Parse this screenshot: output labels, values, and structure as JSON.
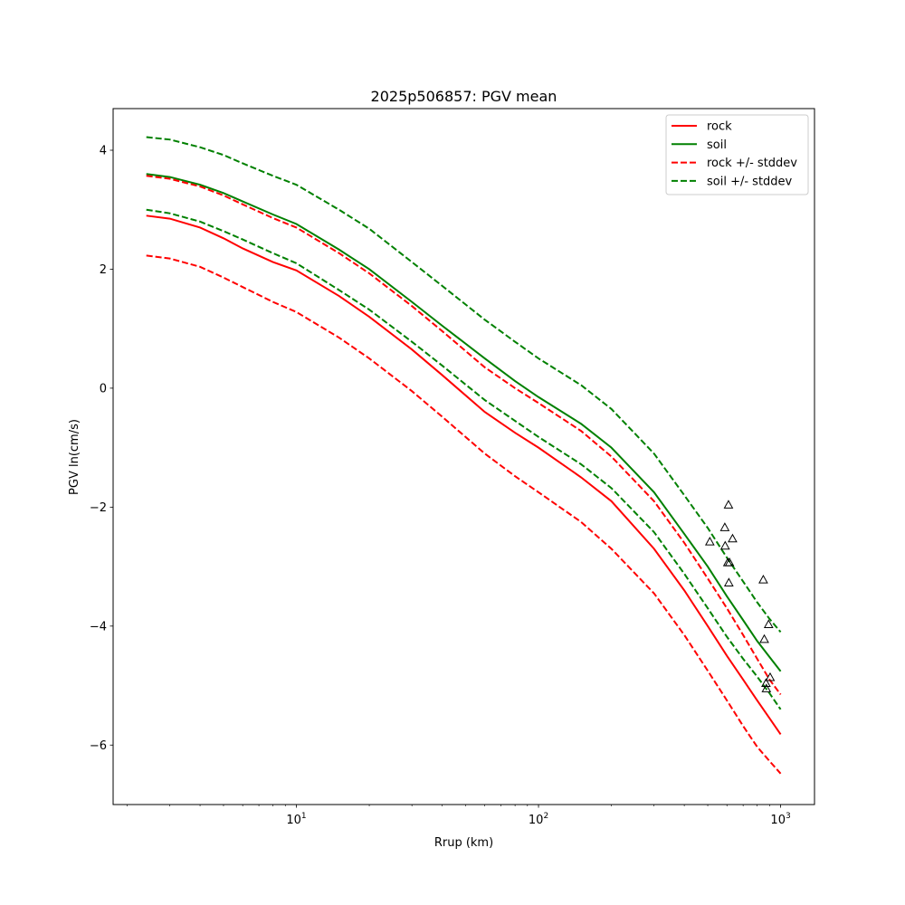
{
  "chart_data": {
    "type": "line",
    "title": "2025p506857: PGV mean",
    "xlabel": "Rrup (km)",
    "ylabel": "PGV ln(cm/s)",
    "xscale": "log",
    "xlim": [
      1.75,
      1380
    ],
    "ylim": [
      -7.0,
      4.7
    ],
    "x_ticks": [
      {
        "value": 10,
        "base": "10",
        "exp": "1"
      },
      {
        "value": 100,
        "base": "10",
        "exp": "2"
      },
      {
        "value": 1000,
        "base": "10",
        "exp": "3"
      }
    ],
    "y_ticks": [
      4,
      2,
      0,
      -2,
      -4,
      -6
    ],
    "y_tick_labels": [
      "4",
      "2",
      "0",
      "−2",
      "−4",
      "−6"
    ],
    "grid": false,
    "legend_position": "top-right",
    "x": [
      2.4,
      3,
      4,
      5,
      6,
      8,
      10,
      15,
      20,
      30,
      40,
      60,
      80,
      100,
      150,
      200,
      300,
      400,
      500,
      600,
      700,
      800,
      900,
      1000
    ],
    "series": [
      {
        "name": "rock",
        "color": "#ff0000",
        "style": "solid",
        "values": [
          2.9,
          2.85,
          2.7,
          2.52,
          2.35,
          2.12,
          1.98,
          1.55,
          1.2,
          0.65,
          0.22,
          -0.4,
          -0.75,
          -1.0,
          -1.5,
          -1.9,
          -2.7,
          -3.4,
          -4.0,
          -4.5,
          -4.9,
          -5.25,
          -5.55,
          -5.82
        ]
      },
      {
        "name": "soil",
        "color": "#008000",
        "style": "solid",
        "values": [
          3.6,
          3.55,
          3.42,
          3.28,
          3.14,
          2.92,
          2.76,
          2.33,
          2.0,
          1.45,
          1.05,
          0.5,
          0.12,
          -0.15,
          -0.6,
          -1.0,
          -1.75,
          -2.45,
          -3.0,
          -3.5,
          -3.9,
          -4.25,
          -4.52,
          -4.76
        ]
      },
      {
        "name": "rock +/- stddev",
        "color": "#ff0000",
        "style": "dashed",
        "values": [
          3.57,
          3.52,
          3.39,
          3.24,
          3.09,
          2.86,
          2.7,
          2.27,
          1.93,
          1.38,
          0.96,
          0.35,
          0.0,
          -0.25,
          -0.72,
          -1.15,
          -1.9,
          -2.6,
          -3.2,
          -3.7,
          -4.15,
          -4.55,
          -4.9,
          -5.15
        ]
      },
      {
        "name": "rock +/- stddev",
        "color": "#ff0000",
        "style": "dashed",
        "legend": false,
        "values": [
          2.23,
          2.18,
          2.04,
          1.86,
          1.7,
          1.45,
          1.28,
          0.85,
          0.5,
          -0.05,
          -0.48,
          -1.1,
          -1.48,
          -1.75,
          -2.25,
          -2.7,
          -3.45,
          -4.15,
          -4.75,
          -5.25,
          -5.68,
          -6.03,
          -6.27,
          -6.48
        ]
      },
      {
        "name": "soil +/- stddev",
        "color": "#008000",
        "style": "dashed",
        "values": [
          4.22,
          4.18,
          4.05,
          3.92,
          3.78,
          3.57,
          3.42,
          3.0,
          2.68,
          2.12,
          1.72,
          1.15,
          0.78,
          0.5,
          0.05,
          -0.35,
          -1.1,
          -1.8,
          -2.35,
          -2.85,
          -3.25,
          -3.6,
          -3.88,
          -4.1
        ]
      },
      {
        "name": "soil +/- stddev",
        "color": "#008000",
        "style": "dashed",
        "legend": false,
        "values": [
          3.0,
          2.94,
          2.8,
          2.64,
          2.5,
          2.27,
          2.1,
          1.65,
          1.32,
          0.78,
          0.38,
          -0.2,
          -0.55,
          -0.82,
          -1.28,
          -1.68,
          -2.42,
          -3.12,
          -3.7,
          -4.18,
          -4.55,
          -4.85,
          -5.13,
          -5.4
        ]
      }
    ],
    "observations": {
      "marker": "triangle",
      "color": "#000000",
      "points": [
        {
          "x": 510,
          "y": -2.58
        },
        {
          "x": 588,
          "y": -2.34
        },
        {
          "x": 590,
          "y": -2.65
        },
        {
          "x": 605,
          "y": -2.93
        },
        {
          "x": 609,
          "y": -1.96
        },
        {
          "x": 611,
          "y": -3.27
        },
        {
          "x": 615,
          "y": -2.93
        },
        {
          "x": 633,
          "y": -2.53
        },
        {
          "x": 848,
          "y": -3.22
        },
        {
          "x": 856,
          "y": -4.22
        },
        {
          "x": 870,
          "y": -4.96
        },
        {
          "x": 873,
          "y": -5.05
        },
        {
          "x": 892,
          "y": -3.97
        },
        {
          "x": 905,
          "y": -4.86
        }
      ]
    }
  }
}
